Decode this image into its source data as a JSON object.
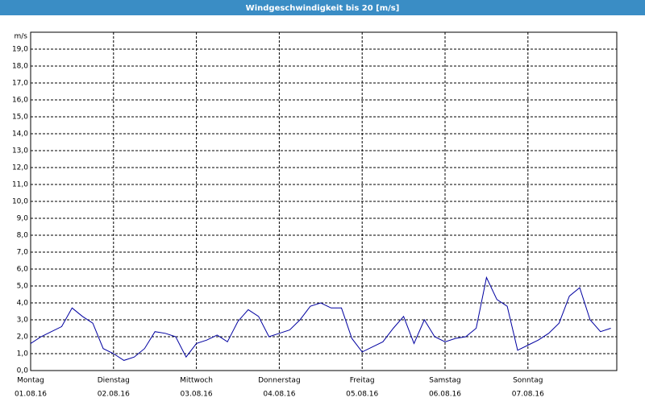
{
  "chart_data": {
    "type": "line",
    "title": "Windgeschwindigkeit bis 20 [m/s]",
    "y_unit": "m/s",
    "x_labels": [
      {
        "day": "Montag",
        "date": "01.08.16"
      },
      {
        "day": "Dienstag",
        "date": "02.08.16"
      },
      {
        "day": "Mittwoch",
        "date": "03.08.16"
      },
      {
        "day": "Donnerstag",
        "date": "04.08.16"
      },
      {
        "day": "Freitag",
        "date": "05.08.16"
      },
      {
        "day": "Samstag",
        "date": "06.08.16"
      },
      {
        "day": "Sonntag",
        "date": "07.08.16"
      }
    ],
    "color": "#0000a0",
    "values": [
      1.6,
      2.0,
      2.3,
      2.6,
      3.7,
      3.2,
      2.8,
      1.3,
      1.0,
      0.6,
      0.8,
      1.3,
      2.3,
      2.2,
      2.0,
      0.8,
      1.6,
      1.8,
      2.1,
      1.7,
      2.9,
      3.6,
      3.2,
      2.0,
      2.2,
      2.4,
      3.0,
      3.8,
      4.0,
      3.7,
      3.7,
      1.9,
      1.1,
      1.4,
      1.7,
      2.5,
      3.2,
      1.6,
      3.0,
      2.0,
      1.7,
      1.9,
      2.0,
      2.5,
      5.5,
      4.2,
      3.8,
      1.2,
      1.5,
      1.8,
      2.2,
      2.8,
      4.4,
      4.9,
      3.0,
      2.3,
      2.5
    ],
    "ylim": [
      0,
      20
    ],
    "yticks": [
      {
        "value": 0,
        "label": "0,0"
      },
      {
        "value": 1,
        "label": "1,0"
      },
      {
        "value": 2,
        "label": "2,0"
      },
      {
        "value": 3,
        "label": "3,0"
      },
      {
        "value": 4,
        "label": "4,0"
      },
      {
        "value": 5,
        "label": "5,0"
      },
      {
        "value": 6,
        "label": "6,0"
      },
      {
        "value": 7,
        "label": "7,0"
      },
      {
        "value": 8,
        "label": "8,0"
      },
      {
        "value": 9,
        "label": "9,0"
      },
      {
        "value": 10,
        "label": "10,0"
      },
      {
        "value": 11,
        "label": "11,0"
      },
      {
        "value": 12,
        "label": "12,0"
      },
      {
        "value": 13,
        "label": "13,0"
      },
      {
        "value": 14,
        "label": "14,0"
      },
      {
        "value": 15,
        "label": "15,0"
      },
      {
        "value": 16,
        "label": "16,0"
      },
      {
        "value": 17,
        "label": "17,0"
      },
      {
        "value": 18,
        "label": "18,0"
      },
      {
        "value": 19,
        "label": "19,0"
      }
    ],
    "grid": true
  }
}
